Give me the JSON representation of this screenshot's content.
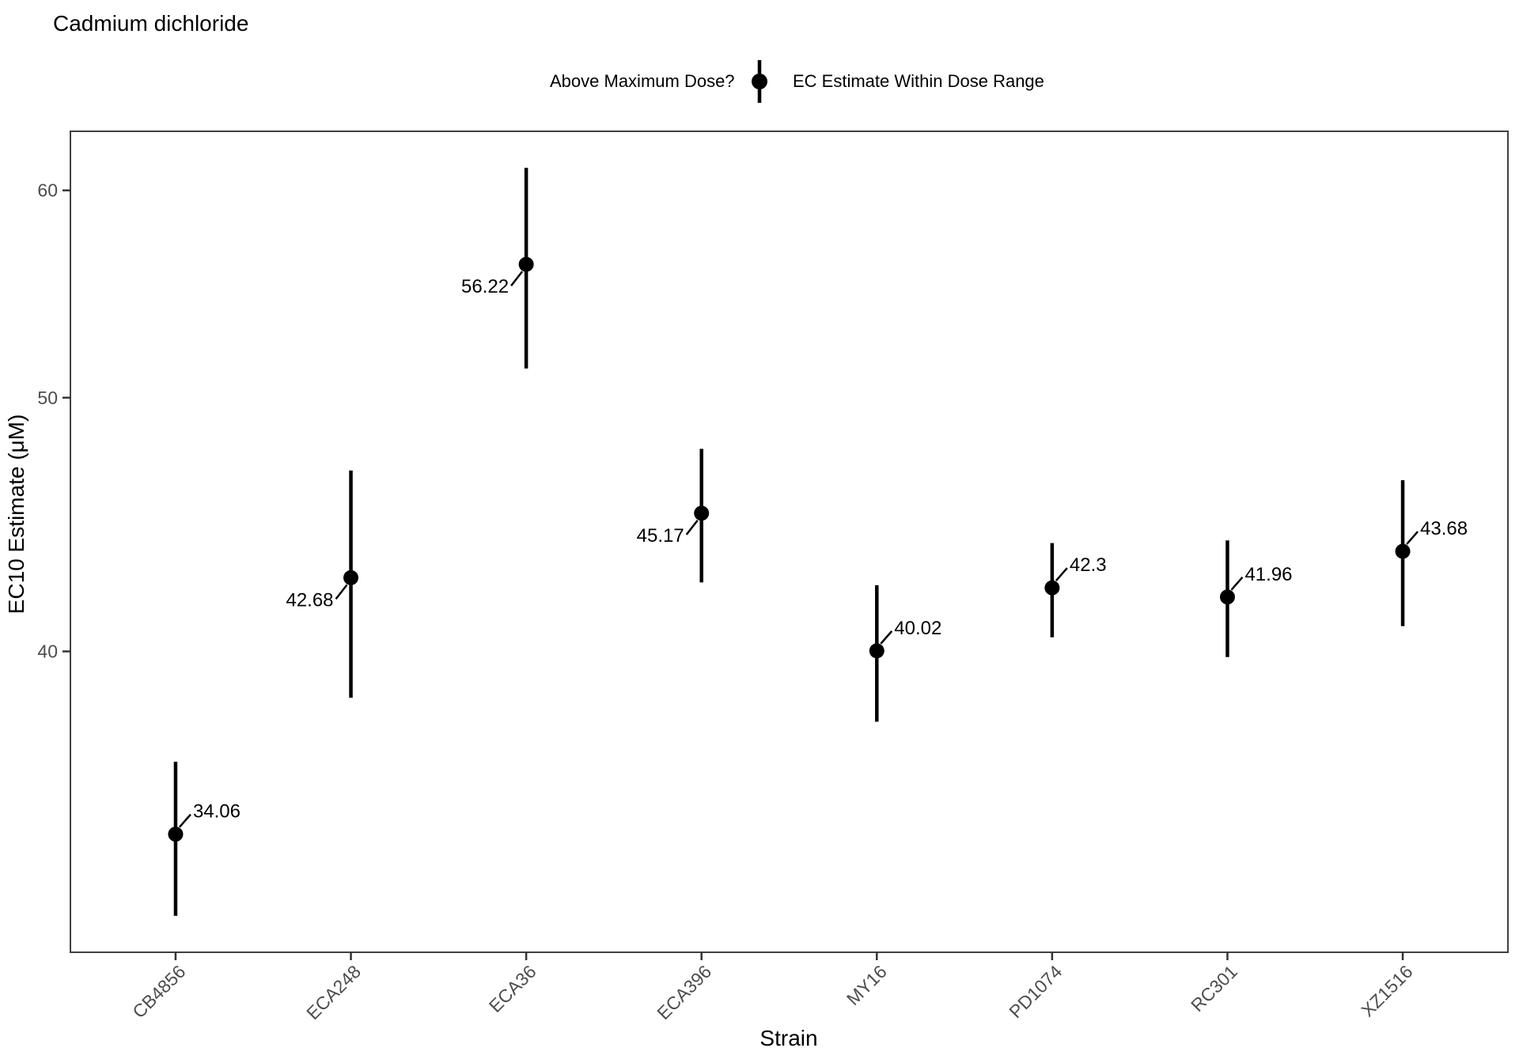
{
  "title": "Cadmium dichloride",
  "legend": {
    "title": "Above Maximum Dose?",
    "items": [
      {
        "label": "EC Estimate Within Dose Range",
        "symbol": "point-with-errorbar-icon",
        "color": "#000000"
      }
    ]
  },
  "chart_data": {
    "type": "scatter",
    "title": "Cadmium dichloride",
    "xlabel": "Strain",
    "ylabel": "EC10 Estimate (μM)",
    "y_scale": "log10",
    "ylim": [
      30.7,
      63.2
    ],
    "y_ticks": [
      40,
      50,
      60
    ],
    "grid": false,
    "legend_position": "top",
    "categories": [
      "CB4856",
      "ECA248",
      "ECA36",
      "ECA396",
      "MY16",
      "PD1074",
      "RC301",
      "XZ1516"
    ],
    "series": [
      {
        "name": "EC Estimate Within Dose Range",
        "color": "#000000",
        "points": [
          {
            "category": "CB4856",
            "estimate": 34.06,
            "label": "34.06",
            "ci_low": 31.7,
            "ci_high": 36.3,
            "label_placement": "upper-right"
          },
          {
            "category": "ECA248",
            "estimate": 42.68,
            "label": "42.68",
            "ci_low": 38.4,
            "ci_high": 46.9,
            "label_placement": "lower-left"
          },
          {
            "category": "ECA36",
            "estimate": 56.22,
            "label": "56.22",
            "ci_low": 51.3,
            "ci_high": 61.2,
            "label_placement": "lower-left"
          },
          {
            "category": "ECA396",
            "estimate": 45.17,
            "label": "45.17",
            "ci_low": 42.5,
            "ci_high": 47.8,
            "label_placement": "lower-left"
          },
          {
            "category": "MY16",
            "estimate": 40.02,
            "label": "40.02",
            "ci_low": 37.6,
            "ci_high": 42.4,
            "label_placement": "upper-right"
          },
          {
            "category": "PD1074",
            "estimate": 42.3,
            "label": "42.3",
            "ci_low": 40.5,
            "ci_high": 44.0,
            "label_placement": "upper-right"
          },
          {
            "category": "RC301",
            "estimate": 41.96,
            "label": "41.96",
            "ci_low": 39.8,
            "ci_high": 44.1,
            "label_placement": "upper-right"
          },
          {
            "category": "XZ1516",
            "estimate": 43.68,
            "label": "43.68",
            "ci_low": 40.9,
            "ci_high": 46.5,
            "label_placement": "upper-right"
          }
        ]
      }
    ],
    "colors": {
      "point": "#000000",
      "axis_text": "#4d4d4d",
      "panel_border": "#404040",
      "tick": "#333333",
      "text": "#000000"
    }
  }
}
